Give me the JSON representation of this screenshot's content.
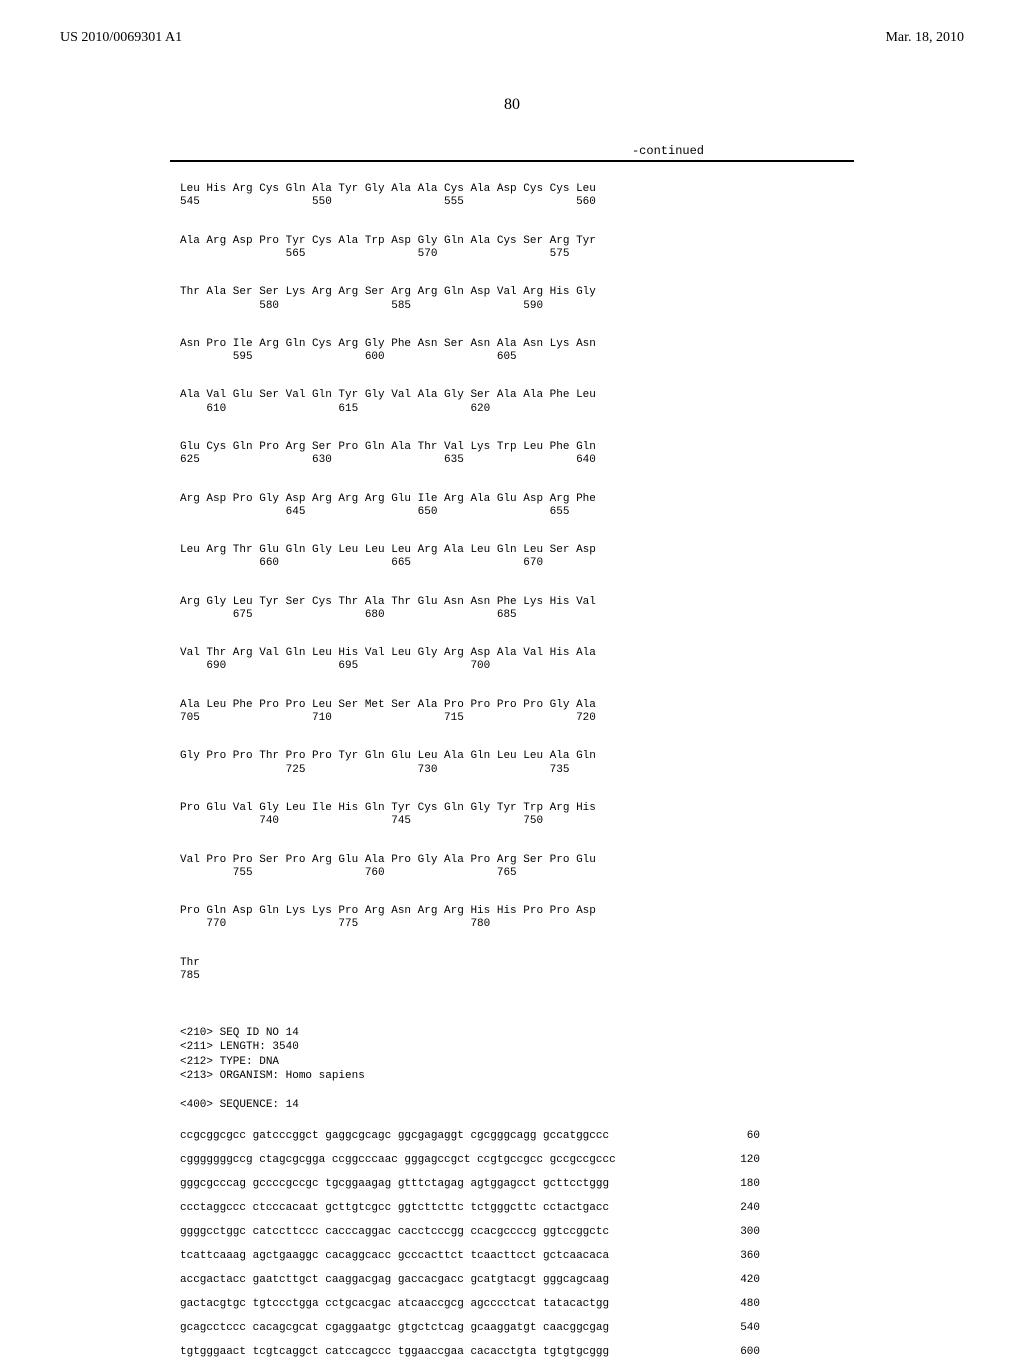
{
  "header": {
    "pub_number": "US 2010/0069301 A1",
    "pub_date": "Mar. 18, 2010"
  },
  "page_number": "80",
  "continued_label": "-continued",
  "protein_rows": [
    {
      "aa": "Leu His Arg Cys Gln Ala Tyr Gly Ala Ala Cys Ala Asp Cys Cys Leu",
      "nums": "545                 550                 555                 560"
    },
    {
      "aa": "Ala Arg Asp Pro Tyr Cys Ala Trp Asp Gly Gln Ala Cys Ser Arg Tyr",
      "nums": "                565                 570                 575"
    },
    {
      "aa": "Thr Ala Ser Ser Lys Arg Arg Ser Arg Arg Gln Asp Val Arg His Gly",
      "nums": "            580                 585                 590"
    },
    {
      "aa": "Asn Pro Ile Arg Gln Cys Arg Gly Phe Asn Ser Asn Ala Asn Lys Asn",
      "nums": "        595                 600                 605"
    },
    {
      "aa": "Ala Val Glu Ser Val Gln Tyr Gly Val Ala Gly Ser Ala Ala Phe Leu",
      "nums": "    610                 615                 620"
    },
    {
      "aa": "Glu Cys Gln Pro Arg Ser Pro Gln Ala Thr Val Lys Trp Leu Phe Gln",
      "nums": "625                 630                 635                 640"
    },
    {
      "aa": "Arg Asp Pro Gly Asp Arg Arg Arg Glu Ile Arg Ala Glu Asp Arg Phe",
      "nums": "                645                 650                 655"
    },
    {
      "aa": "Leu Arg Thr Glu Gln Gly Leu Leu Leu Arg Ala Leu Gln Leu Ser Asp",
      "nums": "            660                 665                 670"
    },
    {
      "aa": "Arg Gly Leu Tyr Ser Cys Thr Ala Thr Glu Asn Asn Phe Lys His Val",
      "nums": "        675                 680                 685"
    },
    {
      "aa": "Val Thr Arg Val Gln Leu His Val Leu Gly Arg Asp Ala Val His Ala",
      "nums": "    690                 695                 700"
    },
    {
      "aa": "Ala Leu Phe Pro Pro Leu Ser Met Ser Ala Pro Pro Pro Pro Gly Ala",
      "nums": "705                 710                 715                 720"
    },
    {
      "aa": "Gly Pro Pro Thr Pro Pro Tyr Gln Glu Leu Ala Gln Leu Leu Ala Gln",
      "nums": "                725                 730                 735"
    },
    {
      "aa": "Pro Glu Val Gly Leu Ile His Gln Tyr Cys Gln Gly Tyr Trp Arg His",
      "nums": "            740                 745                 750"
    },
    {
      "aa": "Val Pro Pro Ser Pro Arg Glu Ala Pro Gly Ala Pro Arg Ser Pro Glu",
      "nums": "        755                 760                 765"
    },
    {
      "aa": "Pro Gln Asp Gln Lys Lys Pro Arg Asn Arg Arg His His Pro Pro Asp",
      "nums": "    770                 775                 780"
    },
    {
      "aa": "Thr",
      "nums": "785"
    }
  ],
  "meta": {
    "seq_id": "<210> SEQ ID NO 14",
    "length": "<211> LENGTH: 3540",
    "type": "<212> TYPE: DNA",
    "organism": "<213> ORGANISM: Homo sapiens",
    "sequence_header": "<400> SEQUENCE: 14"
  },
  "dna_rows": [
    {
      "seq": "ccgcggcgcc gatcccggct gaggcgcagc ggcgagaggt cgcgggcagg gccatggccc",
      "pos": "60"
    },
    {
      "seq": "cgggggggccg ctagcgcgga ccggcccaac gggagccgct ccgtgccgcc gccgccgccc",
      "pos": "120"
    },
    {
      "seq": "gggcgcccag gccccgccgc tgcggaagag gtttctagag agtggagcct gcttcctggg",
      "pos": "180"
    },
    {
      "seq": "ccctaggccc ctcccacaat gcttgtcgcc ggtcttcttc tctgggcttc cctactgacc",
      "pos": "240"
    },
    {
      "seq": "ggggcctggc catccttccc cacccaggac cacctcccgg ccacgccccg ggtccggctc",
      "pos": "300"
    },
    {
      "seq": "tcattcaaag agctgaaggc cacaggcacc gcccacttct tcaacttcct gctcaacaca",
      "pos": "360"
    },
    {
      "seq": "accgactacc gaatcttgct caaggacgag gaccacgacc gcatgtacgt gggcagcaag",
      "pos": "420"
    },
    {
      "seq": "gactacgtgc tgtccctgga cctgcacgac atcaaccgcg agcccctcat tatacactgg",
      "pos": "480"
    },
    {
      "seq": "gcagcctccc cacagcgcat cgaggaatgc gtgctctcag gcaaggatgt caacggcgag",
      "pos": "540"
    },
    {
      "seq": "tgtgggaact tcgtcaggct catccagccc tggaaccgaa cacacctgta tgtgtgcggg",
      "pos": "600"
    }
  ]
}
